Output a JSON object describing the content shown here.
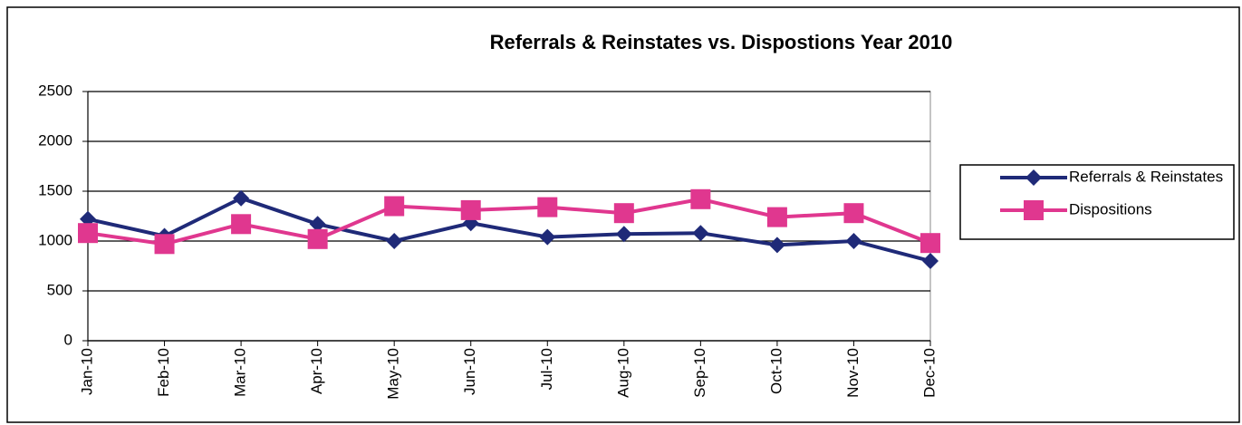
{
  "chart_data": {
    "type": "line",
    "title": "Referrals & Reinstates vs. Dispostions Year 2010",
    "categories": [
      "Jan-10",
      "Feb-10",
      "Mar-10",
      "Apr-10",
      "May-10",
      "Jun-10",
      "Jul-10",
      "Aug-10",
      "Sep-10",
      "Oct-10",
      "Nov-10",
      "Dec-10"
    ],
    "series": [
      {
        "name": "Referrals & Reinstates",
        "color": "#1f2a78",
        "marker": "diamond",
        "values": [
          1220,
          1050,
          1430,
          1170,
          1000,
          1180,
          1040,
          1070,
          1080,
          960,
          1000,
          800
        ]
      },
      {
        "name": "Dispositions",
        "color": "#e0378f",
        "marker": "square",
        "values": [
          1080,
          970,
          1170,
          1020,
          1350,
          1310,
          1340,
          1280,
          1420,
          1240,
          1280,
          980
        ]
      }
    ],
    "ylim": [
      0,
      2500
    ],
    "yticks": [
      0,
      500,
      1000,
      1500,
      2000,
      2500
    ],
    "grid": true,
    "legend": "right"
  }
}
